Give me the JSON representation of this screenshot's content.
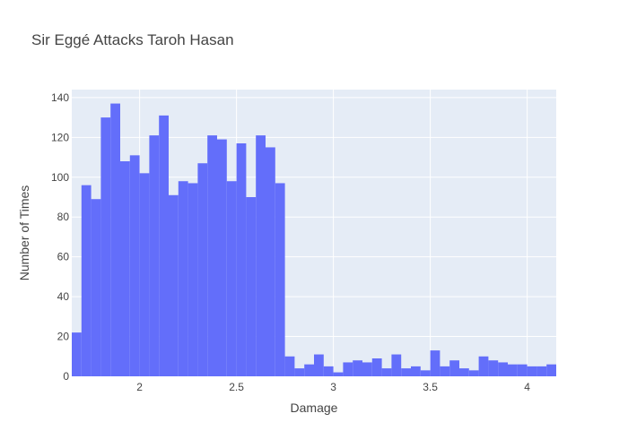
{
  "chart_data": {
    "type": "bar",
    "title": "Sir Eggé Attacks Taroh Hasan",
    "xlabel": "Damage",
    "ylabel": "Number of Times",
    "xlim": [
      1.65,
      4.15
    ],
    "ylim": [
      0,
      144
    ],
    "bin_width": 0.05,
    "bin_start": 1.65,
    "values": [
      22,
      96,
      89,
      130,
      137,
      108,
      111,
      102,
      121,
      131,
      91,
      98,
      97,
      107,
      121,
      119,
      98,
      117,
      90,
      121,
      115,
      97,
      10,
      4,
      6,
      11,
      5,
      2,
      7,
      8,
      7,
      9,
      4,
      11,
      4,
      5,
      3,
      13,
      5,
      8,
      4,
      3,
      10,
      8,
      7,
      6,
      6,
      5,
      5,
      6
    ],
    "x_ticks": [
      2,
      2.5,
      3,
      3.5,
      4
    ],
    "x_tick_labels": [
      "2",
      "2.5",
      "3",
      "3.5",
      "4"
    ],
    "y_ticks": [
      0,
      20,
      40,
      60,
      80,
      100,
      120,
      140
    ],
    "y_tick_labels": [
      "0",
      "20",
      "40",
      "60",
      "80",
      "100",
      "120",
      "140"
    ],
    "grid": true,
    "colors": {
      "bar": "#636efa",
      "plot_bg": "#e5ecf6",
      "grid": "#ffffff"
    }
  }
}
